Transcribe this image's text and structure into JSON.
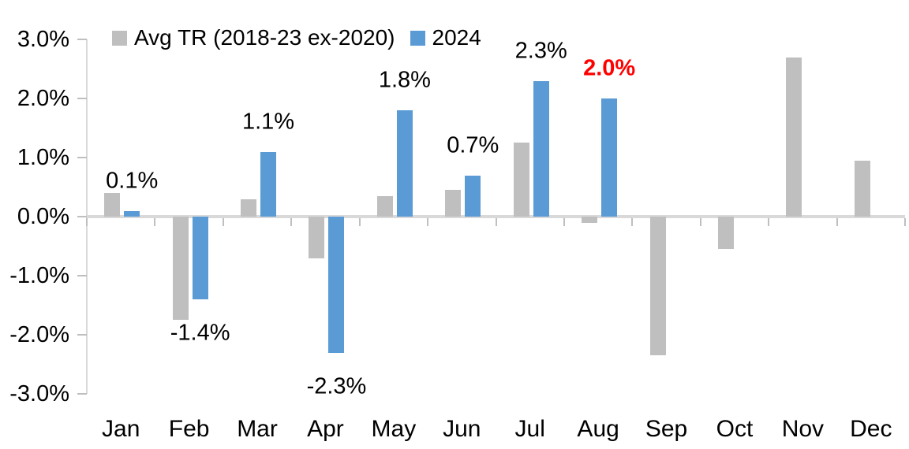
{
  "chart_data": {
    "type": "bar",
    "title": "",
    "categories": [
      "Jan",
      "Feb",
      "Mar",
      "Apr",
      "May",
      "Jun",
      "Jul",
      "Aug",
      "Sep",
      "Oct",
      "Nov",
      "Dec"
    ],
    "series": [
      {
        "name": "Avg TR (2018-23 ex-2020)",
        "color": "#BFBFBF",
        "values": [
          0.4,
          -1.75,
          0.3,
          -0.7,
          0.35,
          0.45,
          1.25,
          -0.1,
          -2.35,
          -0.55,
          2.7,
          0.95
        ]
      },
      {
        "name": "2024",
        "color": "#5B9BD5",
        "values": [
          0.1,
          -1.4,
          1.1,
          -2.3,
          1.8,
          0.7,
          2.3,
          2.0,
          null,
          null,
          null,
          null
        ],
        "data_labels": [
          "0.1%",
          "-1.4%",
          "1.1%",
          "-2.3%",
          "1.8%",
          "0.7%",
          "2.3%",
          "2.0%",
          null,
          null,
          null,
          null
        ]
      }
    ],
    "value_unit": "%",
    "y_axis": {
      "min": -3,
      "max": 3,
      "tick_labels": [
        "3.0%",
        "2.0%",
        "1.0%",
        "0.0%",
        "-1.0%",
        "-2.0%",
        "-3.0%"
      ]
    },
    "x_axis": {
      "label": ""
    },
    "grid": false,
    "legend": {
      "position": "top"
    },
    "highlight": {
      "category": "Aug",
      "label": "2.0%",
      "color": "#FF0000",
      "bold": true
    },
    "style_colors": {
      "axis_line": "#D9D9D9",
      "tick_mark": "#BFBFBF",
      "text": "#000000",
      "background": "#FFFFFF"
    }
  }
}
